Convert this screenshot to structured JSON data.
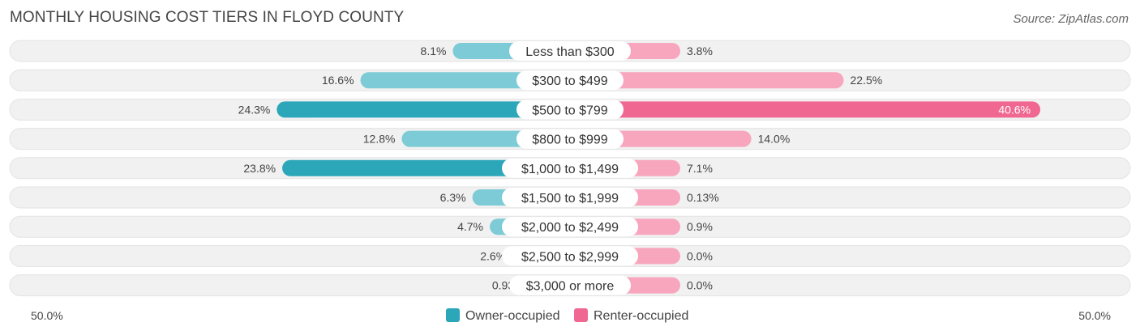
{
  "title": "MONTHLY HOUSING COST TIERS IN FLOYD COUNTY",
  "source": "Source: ZipAtlas.com",
  "colors": {
    "owner": "#2ba7b9",
    "owner_light": "#7ccbd6",
    "renter": "#f06792",
    "renter_light": "#f7a6be",
    "row_bg": "#f1f1f1"
  },
  "chart_data": {
    "type": "bar",
    "orientation": "diverging-horizontal",
    "title": "MONTHLY HOUSING COST TIERS IN FLOYD COUNTY",
    "categories": [
      "Less than $300",
      "$300 to $499",
      "$500 to $799",
      "$800 to $999",
      "$1,000 to $1,499",
      "$1,500 to $1,999",
      "$2,000 to $2,499",
      "$2,500 to $2,999",
      "$3,000 or more"
    ],
    "series": [
      {
        "name": "Owner-occupied",
        "values": [
          8.1,
          16.6,
          24.3,
          12.8,
          23.8,
          6.3,
          4.7,
          2.6,
          0.93
        ],
        "labels": [
          "8.1%",
          "16.6%",
          "24.3%",
          "12.8%",
          "23.8%",
          "6.3%",
          "4.7%",
          "2.6%",
          "0.93%"
        ]
      },
      {
        "name": "Renter-occupied",
        "values": [
          3.8,
          22.5,
          40.6,
          14.0,
          7.1,
          0.13,
          0.9,
          0.0,
          0.0
        ],
        "labels": [
          "3.8%",
          "22.5%",
          "40.6%",
          "14.0%",
          "7.1%",
          "0.13%",
          "0.9%",
          "0.0%",
          "0.0%"
        ]
      }
    ],
    "xlim": [
      -50,
      50
    ],
    "axis_labels": {
      "left": "50.0%",
      "right": "50.0%"
    },
    "legend": {
      "placement": "bottom-center"
    }
  }
}
